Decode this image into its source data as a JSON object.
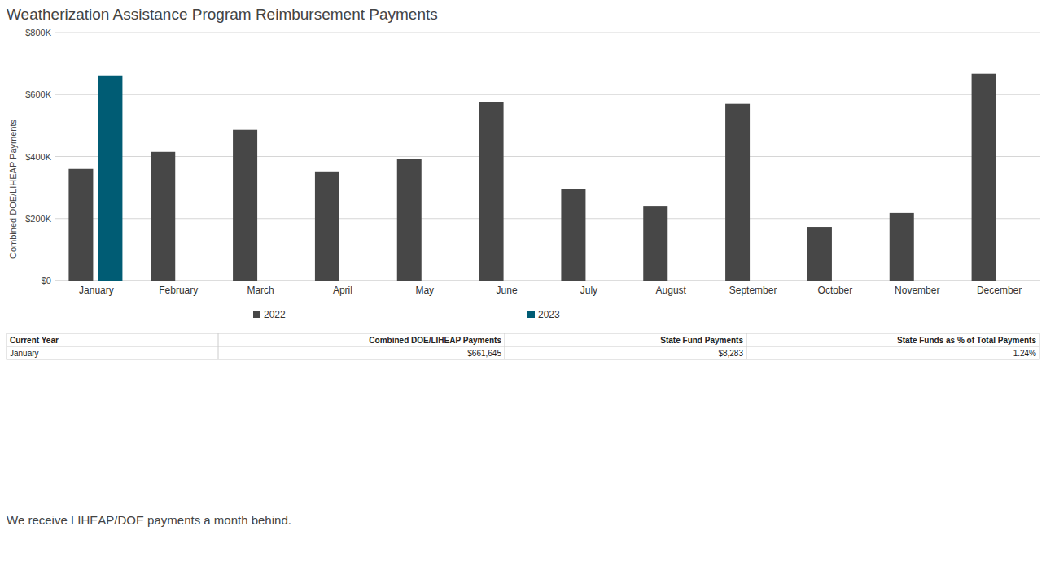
{
  "chart_data": {
    "type": "bar",
    "title": "Weatherization Assistance Program Reimbursement Payments",
    "y_label": "Combined DOE/LIHEAP Payments",
    "categories": [
      "January",
      "February",
      "March",
      "April",
      "May",
      "June",
      "July",
      "August",
      "September",
      "October",
      "November",
      "December"
    ],
    "series": [
      {
        "name": "2022",
        "color": "#474747",
        "values": [
          360000,
          415000,
          486000,
          352000,
          391000,
          577000,
          294000,
          241000,
          570000,
          173000,
          218000,
          667000
        ]
      },
      {
        "name": "2023",
        "color": "#005c74",
        "values": [
          661645,
          null,
          null,
          null,
          null,
          null,
          null,
          null,
          null,
          null,
          null,
          null
        ]
      }
    ],
    "ylim": [
      0,
      800000
    ],
    "yticks": [
      {
        "value": 0,
        "label": "$0"
      },
      {
        "value": 200000,
        "label": "$200K"
      },
      {
        "value": 400000,
        "label": "$400K"
      },
      {
        "value": 600000,
        "label": "$600K"
      },
      {
        "value": 800000,
        "label": "$800K"
      }
    ],
    "grid": true,
    "legend": "bottom"
  },
  "table": {
    "header": [
      "Current Year",
      "Combined DOE/LIHEAP Payments",
      "State Fund Payments",
      "State Funds as % of Total Payments"
    ],
    "rows": [
      [
        "January",
        "$661,645",
        "$8,283",
        "1.24%"
      ]
    ]
  },
  "note": "We receive LIHEAP/DOE payments a month behind."
}
